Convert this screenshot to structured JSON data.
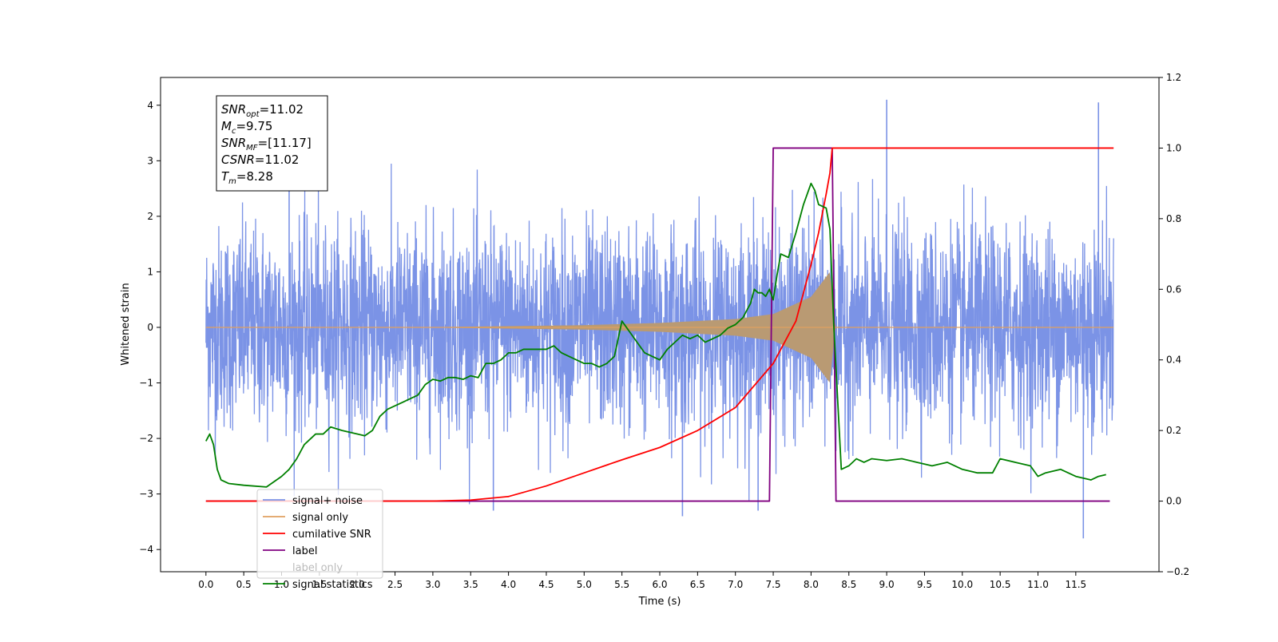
{
  "chart_data": {
    "type": "line",
    "xlabel": "Time (s)",
    "ylabel_left": "Whitened strain",
    "ylabel_right": "",
    "xlim": [
      -0.6,
      12.6
    ],
    "ylim_left": [
      -4.4,
      4.5
    ],
    "ylim_right": [
      -0.2,
      1.2
    ],
    "x_ticks": [
      0.0,
      0.5,
      1.0,
      1.5,
      2.0,
      2.5,
      3.0,
      3.5,
      4.0,
      4.5,
      5.0,
      5.5,
      6.0,
      6.5,
      7.0,
      7.5,
      8.0,
      8.5,
      9.0,
      9.5,
      10.0,
      10.5,
      11.0,
      11.5
    ],
    "x_tick_labels": [
      "0.0",
      "0.5",
      "1.0",
      "1.5",
      "2.0",
      "2.5",
      "3.0",
      "3.5",
      "4.0",
      "4.5",
      "5.0",
      "5.5",
      "6.0",
      "6.5",
      "7.0",
      "7.5",
      "8.0",
      "8.5",
      "9.0",
      "9.5",
      "10.0",
      "10.5",
      "11.0",
      "11.5"
    ],
    "y_left_ticks": [
      -4,
      -3,
      -2,
      -1,
      0,
      1,
      2,
      3,
      4
    ],
    "y_left_tick_labels": [
      "−4",
      "−3",
      "−2",
      "−1",
      "0",
      "1",
      "2",
      "3",
      "4"
    ],
    "y_right_ticks": [
      -0.2,
      0.0,
      0.2,
      0.4,
      0.6,
      0.8,
      1.0,
      1.2
    ],
    "y_right_tick_labels": [
      "−0.2",
      "0.0",
      "0.2",
      "0.4",
      "0.6",
      "0.8",
      "1.0",
      "1.2"
    ],
    "grid": false,
    "legend_position": "bottom-left",
    "annotation": {
      "lines": [
        {
          "base": "SNR",
          "sub": "opt",
          "value": "=11.02"
        },
        {
          "base": "M",
          "sub": "c",
          "value": "=9.75"
        },
        {
          "base": "SNR",
          "sub": "MF",
          "value": "=[11.17]"
        },
        {
          "base": "CSNR",
          "sub": "",
          "value": "=11.02"
        },
        {
          "base": "T",
          "sub": "m",
          "value": "=8.28"
        }
      ]
    },
    "series": [
      {
        "name": "signal+ noise",
        "color": "#7b93e6",
        "axis": "left",
        "x_range": [
          0.0,
          12.0
        ],
        "std": 0.9,
        "peaks": [
          [
            9.0,
            4.1
          ],
          [
            11.8,
            4.05
          ],
          [
            11.6,
            -3.8
          ],
          [
            6.3,
            -3.4
          ],
          [
            3.8,
            -3.3
          ],
          [
            1.1,
            3.55
          ],
          [
            7.3,
            -3.3
          ]
        ]
      },
      {
        "name": "signal only",
        "color": "#e0a060",
        "axis": "left",
        "chirp": {
          "start": 3.0,
          "merger": 8.28,
          "end": 8.32,
          "amp_at_3": 0.005,
          "amp_at_5": 0.04,
          "amp_at_6": 0.08,
          "amp_at_7": 0.15,
          "amp_at_7_5": 0.24,
          "amp_at_8": 0.55,
          "amp_at_8_25": 1.0
        }
      },
      {
        "name": "cumilative SNR",
        "color": "#ff0000",
        "axis": "right",
        "x": [
          0.0,
          3.0,
          3.5,
          4.0,
          4.5,
          5.0,
          5.5,
          6.0,
          6.5,
          7.0,
          7.5,
          7.8,
          8.0,
          8.1,
          8.2,
          8.25,
          8.28,
          12.0
        ],
        "y": [
          0.0,
          0.0,
          0.003,
          0.013,
          0.043,
          0.08,
          0.117,
          0.152,
          0.2,
          0.265,
          0.39,
          0.51,
          0.67,
          0.76,
          0.87,
          0.93,
          1.0,
          1.0
        ]
      },
      {
        "name": "label",
        "color": "#800080",
        "axis": "right",
        "x": [
          0.0,
          7.45,
          7.5,
          8.28,
          8.33,
          11.95
        ],
        "y": [
          0.0,
          0.0,
          1.0,
          1.0,
          0.0,
          0.0
        ]
      },
      {
        "name": "label only",
        "color": "#bbbbbb",
        "axis": "right",
        "hidden_in_plot": true
      },
      {
        "name": "signal statistics",
        "color": "#008000",
        "axis": "right",
        "x": [
          0.0,
          0.05,
          0.1,
          0.15,
          0.2,
          0.3,
          0.5,
          0.8,
          1.0,
          1.1,
          1.2,
          1.3,
          1.45,
          1.55,
          1.65,
          1.8,
          2.0,
          2.1,
          2.2,
          2.3,
          2.4,
          2.5,
          2.6,
          2.8,
          2.9,
          3.0,
          3.1,
          3.2,
          3.3,
          3.4,
          3.5,
          3.6,
          3.7,
          3.8,
          3.9,
          4.0,
          4.1,
          4.2,
          4.3,
          4.5,
          4.6,
          4.7,
          4.8,
          5.0,
          5.1,
          5.2,
          5.3,
          5.4,
          5.5,
          5.6,
          5.7,
          5.8,
          5.9,
          6.0,
          6.1,
          6.2,
          6.3,
          6.4,
          6.5,
          6.6,
          6.7,
          6.8,
          6.9,
          7.0,
          7.1,
          7.2,
          7.25,
          7.3,
          7.35,
          7.4,
          7.45,
          7.5,
          7.55,
          7.6,
          7.7,
          7.8,
          7.9,
          8.0,
          8.05,
          8.1,
          8.2,
          8.25,
          8.3,
          8.4,
          8.5,
          8.6,
          8.7,
          8.8,
          9.0,
          9.2,
          9.4,
          9.6,
          9.8,
          10.0,
          10.2,
          10.4,
          10.5,
          10.7,
          10.9,
          11.0,
          11.1,
          11.3,
          11.5,
          11.7,
          11.8,
          11.9
        ],
        "y": [
          0.17,
          0.19,
          0.16,
          0.09,
          0.06,
          0.05,
          0.045,
          0.04,
          0.07,
          0.09,
          0.12,
          0.16,
          0.19,
          0.19,
          0.21,
          0.2,
          0.19,
          0.185,
          0.2,
          0.24,
          0.26,
          0.27,
          0.28,
          0.3,
          0.33,
          0.345,
          0.34,
          0.35,
          0.35,
          0.345,
          0.355,
          0.35,
          0.39,
          0.39,
          0.4,
          0.42,
          0.42,
          0.43,
          0.43,
          0.43,
          0.44,
          0.42,
          0.41,
          0.39,
          0.39,
          0.38,
          0.39,
          0.41,
          0.51,
          0.48,
          0.45,
          0.42,
          0.41,
          0.4,
          0.43,
          0.45,
          0.47,
          0.46,
          0.47,
          0.45,
          0.46,
          0.47,
          0.49,
          0.5,
          0.52,
          0.56,
          0.6,
          0.59,
          0.59,
          0.58,
          0.6,
          0.57,
          0.64,
          0.7,
          0.69,
          0.76,
          0.84,
          0.9,
          0.88,
          0.84,
          0.83,
          0.77,
          0.5,
          0.09,
          0.1,
          0.12,
          0.11,
          0.12,
          0.115,
          0.12,
          0.11,
          0.1,
          0.11,
          0.09,
          0.08,
          0.08,
          0.12,
          0.11,
          0.1,
          0.07,
          0.08,
          0.09,
          0.07,
          0.06,
          0.07,
          0.075
        ]
      }
    ],
    "legend": [
      "signal+ noise",
      "signal only",
      "cumilative SNR",
      "label",
      "label only",
      "signal statistics"
    ]
  }
}
